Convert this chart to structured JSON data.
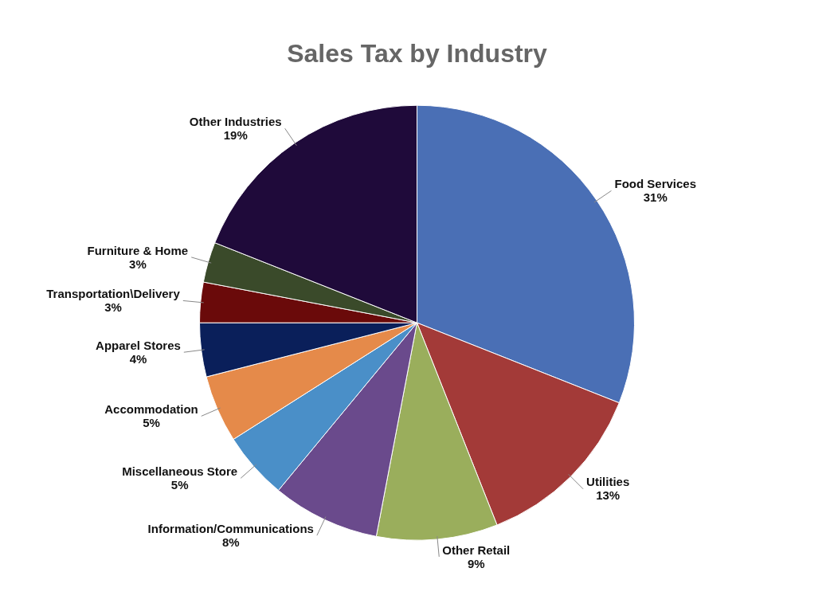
{
  "chart_data": {
    "type": "pie",
    "title": "Sales Tax by Industry",
    "categories": [
      "Food Services",
      "Utilities",
      "Other Retail",
      "Information/Communications",
      "Miscellaneous Store",
      "Accommodation",
      "Apparel Stores",
      "Transportation\\Delivery",
      "Furniture & Home",
      "Other Industries"
    ],
    "values": [
      31,
      13,
      9,
      8,
      5,
      5,
      4,
      3,
      3,
      19
    ],
    "value_labels": [
      "31%",
      "13%",
      "9%",
      "8%",
      "5%",
      "5%",
      "4%",
      "3%",
      "3%",
      "19%"
    ],
    "colors": [
      "#4a6fb5",
      "#a33a38",
      "#9aae5c",
      "#6a4a8c",
      "#4a8fc8",
      "#e58a4a",
      "#0a1f5a",
      "#6a0a0a",
      "#3a4a2a",
      "#1f0a3a"
    ]
  }
}
